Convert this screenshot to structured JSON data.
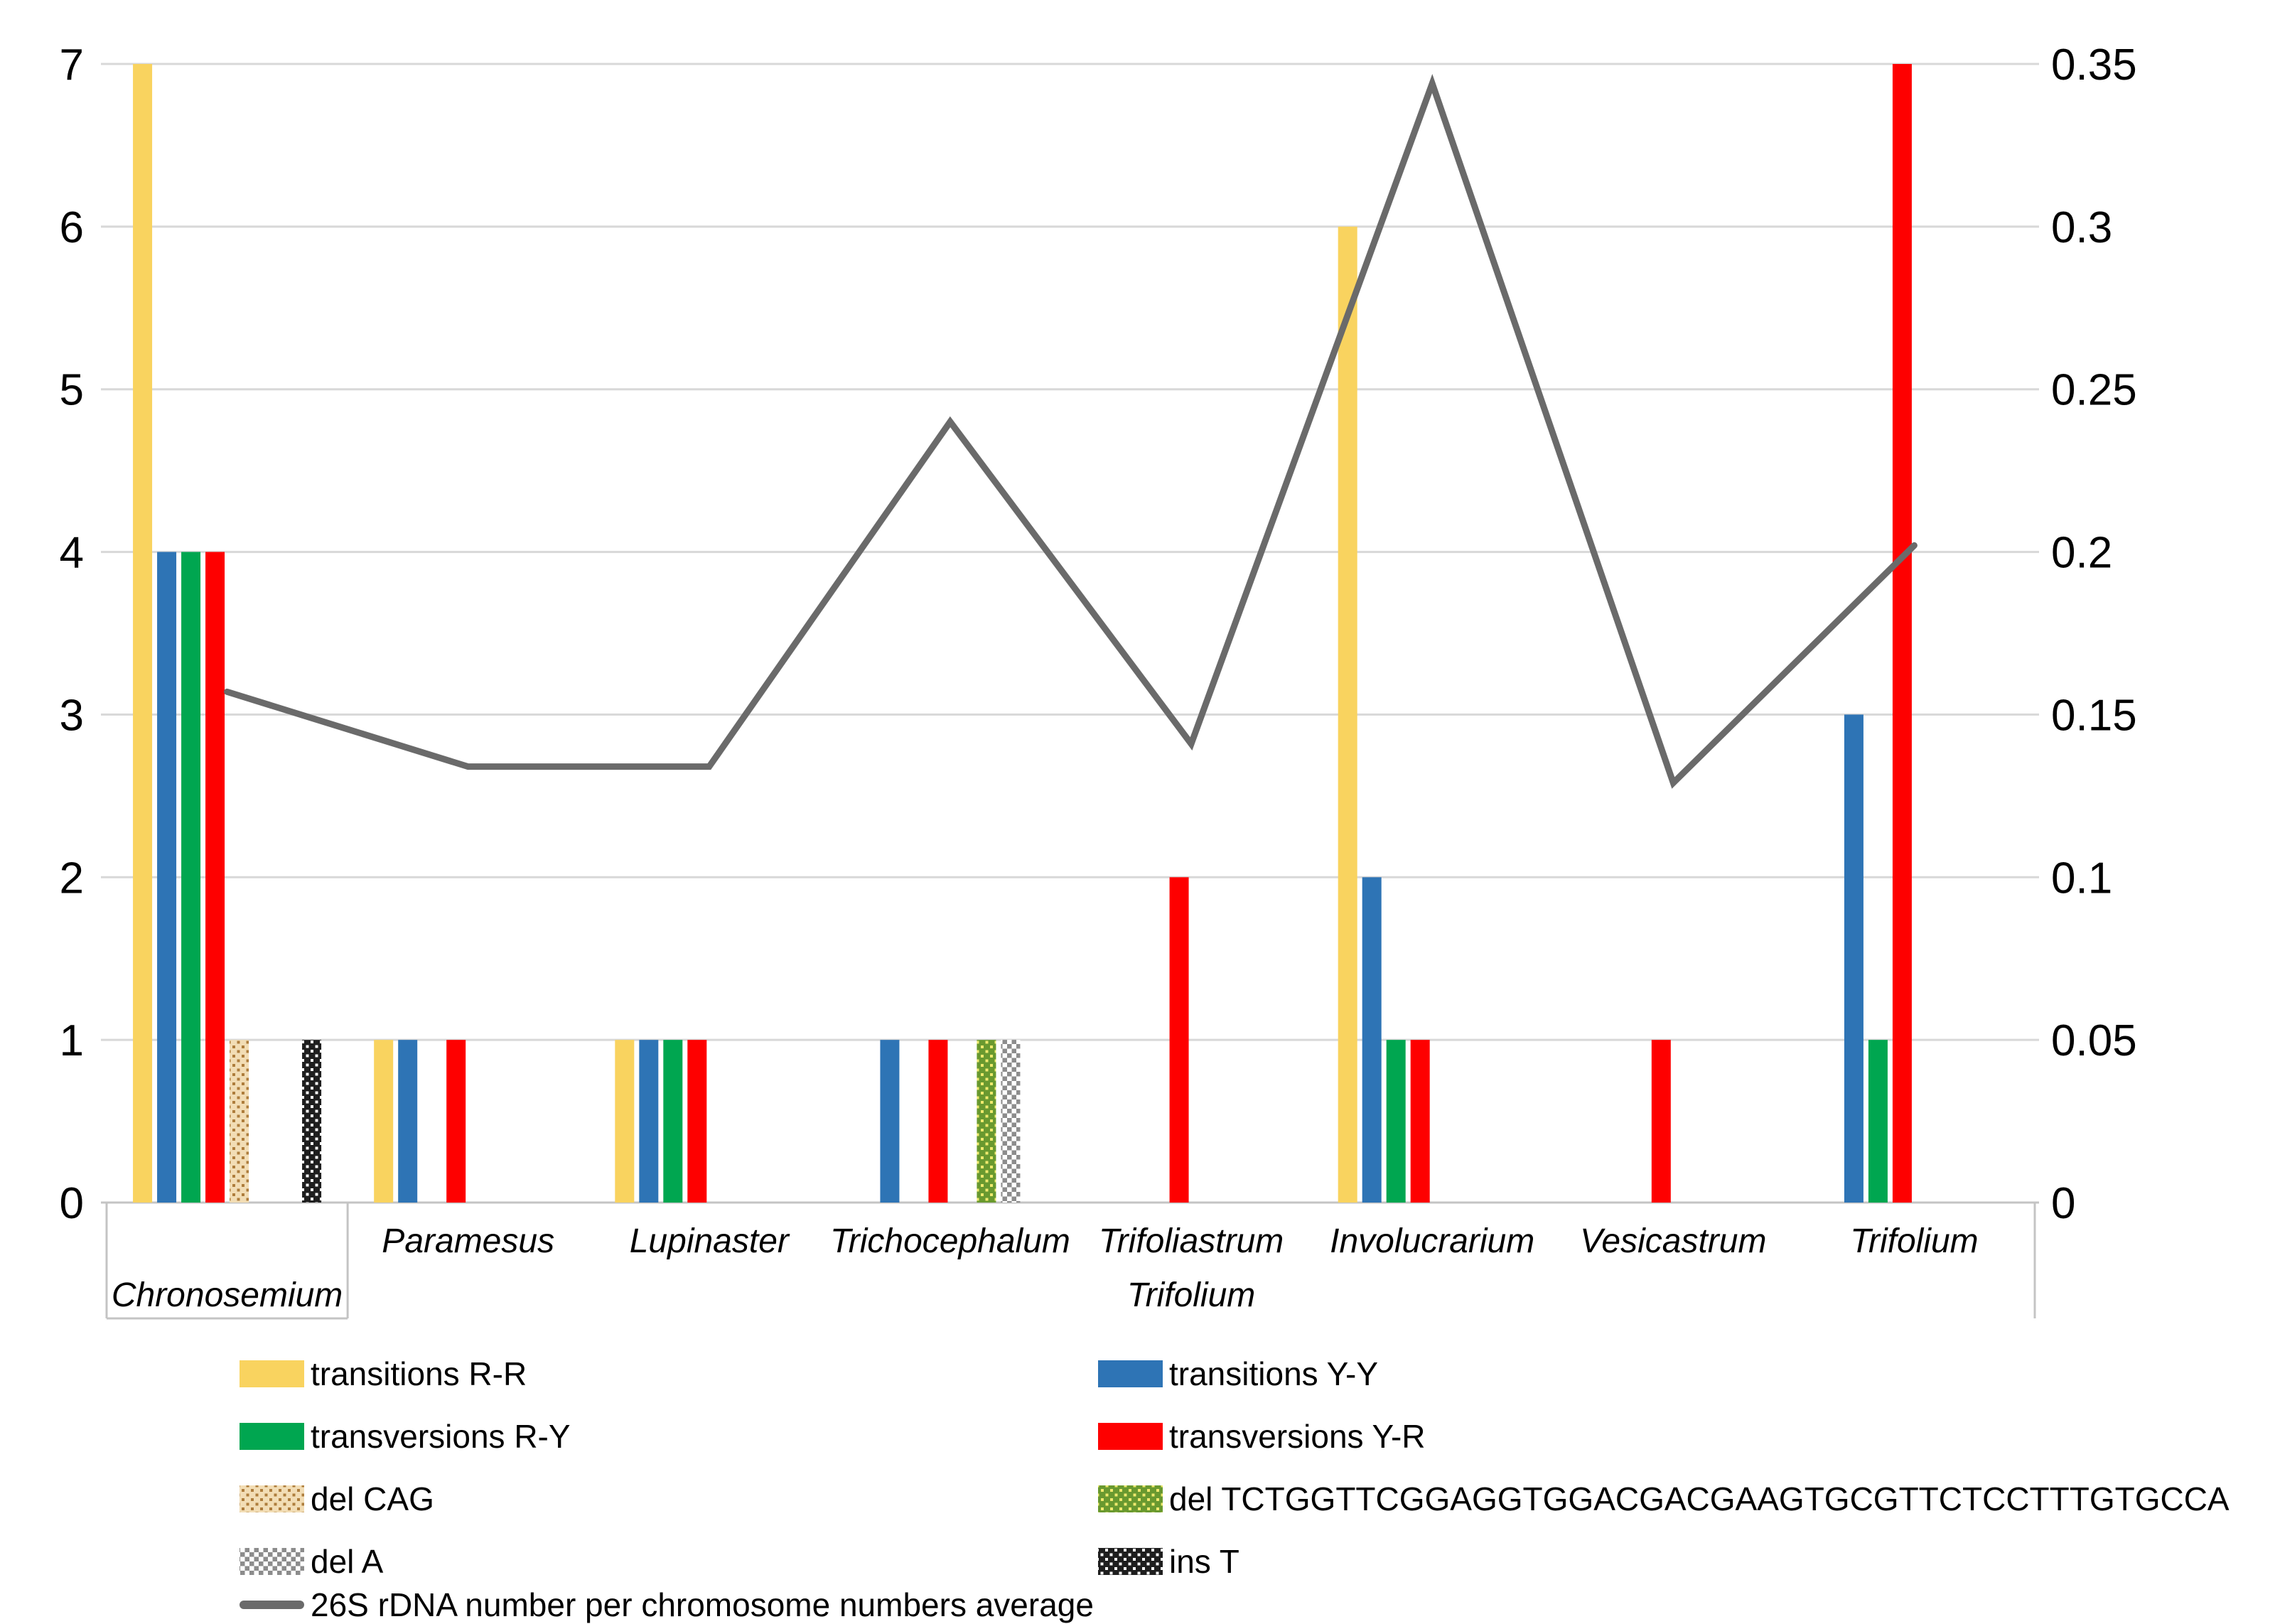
{
  "chart_data": {
    "type": "bar",
    "subtype": "grouped-bars-with-secondary-axis-line",
    "title": "",
    "xlabel": "",
    "ylabel": "",
    "grid": true,
    "legend_position": "bottom-two-columns",
    "categories": [
      "",
      "Paramesus",
      "Lupinaster",
      "Trichocephalum",
      "Trifoliastrum",
      "Involucrarium",
      "Vesicastrum",
      "Trifolium"
    ],
    "category_groups": [
      {
        "label": "Chronosemium",
        "start": 0,
        "end": 1
      },
      {
        "label": "Trifolium",
        "start": 1,
        "end": 8
      }
    ],
    "series": [
      {
        "name": "transitions R-R",
        "style": "solid",
        "color": "#F9D35F",
        "values": [
          7,
          1,
          1,
          0,
          0,
          6,
          0,
          0
        ]
      },
      {
        "name": "transitions Y-Y",
        "style": "solid",
        "color": "#2E74B5",
        "values": [
          4,
          1,
          1,
          1,
          0,
          2,
          0,
          3
        ]
      },
      {
        "name": "transversions R-Y",
        "style": "solid",
        "color": "#00A650",
        "values": [
          4,
          0,
          1,
          0,
          0,
          1,
          0,
          1
        ]
      },
      {
        "name": "transversions Y-R",
        "style": "solid",
        "color": "#FE0000",
        "values": [
          4,
          1,
          1,
          1,
          2,
          1,
          1,
          7
        ]
      },
      {
        "name": "del CAG",
        "style": "pattern",
        "pattern": "dots",
        "bg": "#F2DDB5",
        "fg": "#AE7D3C",
        "values": [
          1,
          0,
          0,
          0,
          0,
          0,
          0,
          0
        ]
      },
      {
        "name": "del TCTGGTTCGGAGGTGGACGACGAAGTGCGTTCTCCTTTGTGCCA",
        "style": "pattern",
        "pattern": "dots",
        "bg": "#69992F",
        "fg": "#EFE96E",
        "values": [
          0,
          0,
          0,
          1,
          0,
          0,
          0,
          0
        ]
      },
      {
        "name": "del A",
        "style": "pattern",
        "pattern": "checker",
        "bg": "#FFFFFF",
        "fg": "#8C8C8C",
        "values": [
          0,
          0,
          0,
          1,
          0,
          0,
          0,
          0
        ]
      },
      {
        "name": "ins T",
        "style": "pattern",
        "pattern": "checker-dots",
        "bg": "#1E1E1E",
        "fg": "#FFFFFF",
        "values": [
          1,
          0,
          0,
          0,
          0,
          0,
          0,
          0
        ]
      }
    ],
    "line_series": {
      "name": "26S rDNA number per chromosome numbers average",
      "color": "#6A6A6A",
      "axis": "right",
      "values": [
        0.157,
        0.134,
        0.134,
        0.24,
        0.141,
        0.344,
        0.129,
        0.202
      ]
    },
    "left_axis": {
      "min": 0,
      "max": 7,
      "step": 1,
      "labels": [
        "0",
        "1",
        "2",
        "3",
        "4",
        "5",
        "6",
        "7"
      ]
    },
    "right_axis": {
      "min": 0,
      "max": 0.35,
      "step": 0.05,
      "labels": [
        "0",
        "0.05",
        "0.1",
        "0.15",
        "0.2",
        "0.25",
        "0.3",
        "0.35"
      ]
    },
    "legend": {
      "left_column_entries": [
        "transitions R-R",
        "transversions R-Y",
        "del CAG",
        "del A",
        "26S rDNA number per chromosome numbers average"
      ],
      "right_column_entries": [
        "transitions Y-Y",
        "transversions Y-R",
        "del TCTGGTTCGGAGGTGGACGACGAAGTGCGTTCTCCTTTGTGCCA",
        "ins T"
      ]
    },
    "palette": {
      "gridline": "#D8D8D8",
      "axis_frame": "#C4C4C4",
      "text": "#000000"
    }
  }
}
